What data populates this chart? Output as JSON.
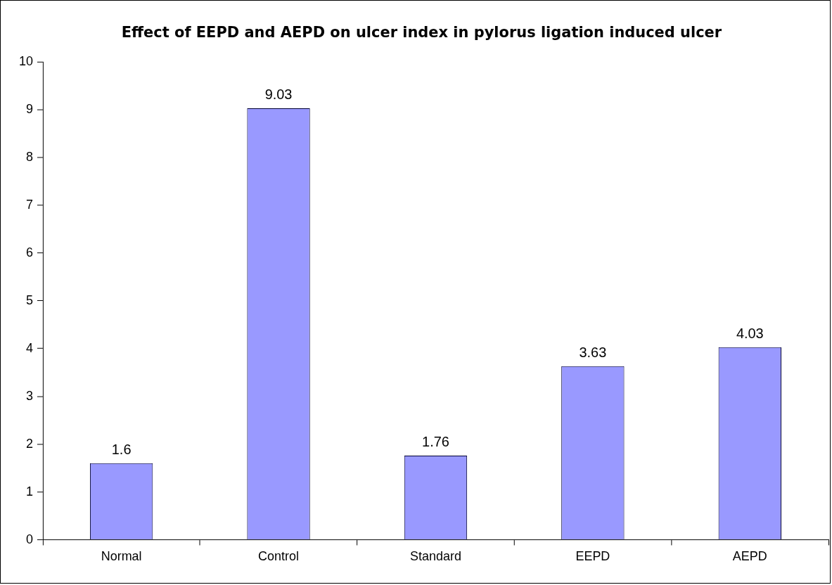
{
  "chart_data": {
    "type": "bar",
    "title": "Effect of EEPD and AEPD on ulcer index in pylorus ligation induced ulcer",
    "categories": [
      "Normal",
      "Control",
      "Standard",
      "EEPD",
      "AEPD"
    ],
    "values": [
      1.6,
      9.03,
      1.76,
      3.63,
      4.03
    ],
    "color": "#9999ff",
    "ylim": [
      0,
      10
    ],
    "yticks": [
      0,
      1,
      2,
      3,
      4,
      5,
      6,
      7,
      8,
      9,
      10
    ],
    "data_labels": true,
    "grid": false,
    "legend": false
  }
}
